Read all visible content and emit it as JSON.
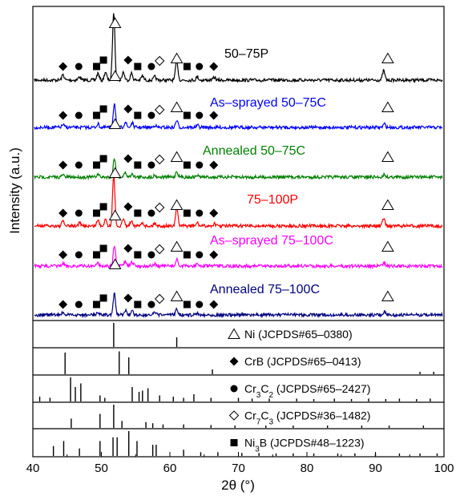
{
  "chart_data": {
    "type": "line",
    "xlabel": "2θ (°)",
    "ylabel": "Intensity (a.u.)",
    "xlim": [
      40,
      100
    ],
    "x_ticks": [
      40,
      50,
      60,
      70,
      80,
      90,
      100
    ],
    "series": [
      {
        "name": "50–75P",
        "color": "#000000",
        "peaks": [
          [
            44.4,
            0.08
          ],
          [
            46.8,
            0.05
          ],
          [
            49.5,
            0.1
          ],
          [
            50.6,
            0.12
          ],
          [
            51.8,
            1.0
          ],
          [
            53.2,
            0.12
          ],
          [
            54.4,
            0.1
          ],
          [
            56.0,
            0.06
          ],
          [
            57.8,
            0.05
          ],
          [
            61.0,
            0.3
          ],
          [
            64.0,
            0.05
          ],
          [
            66.5,
            0.04
          ],
          [
            91.2,
            0.14
          ]
        ]
      },
      {
        "name": "As–sprayed 50–75C",
        "color": "#0000ff",
        "peaks": [
          [
            44.4,
            0.06
          ],
          [
            49.5,
            0.08
          ],
          [
            51.9,
            0.55
          ],
          [
            53.5,
            0.12
          ],
          [
            54.5,
            0.1
          ],
          [
            57.8,
            0.05
          ],
          [
            61.0,
            0.16
          ],
          [
            64.0,
            0.05
          ],
          [
            91.3,
            0.08
          ]
        ]
      },
      {
        "name": "Annealed 50–75C",
        "color": "#008000",
        "peaks": [
          [
            44.4,
            0.06
          ],
          [
            49.5,
            0.08
          ],
          [
            51.9,
            0.5
          ],
          [
            53.5,
            0.12
          ],
          [
            54.5,
            0.1
          ],
          [
            57.8,
            0.05
          ],
          [
            61.0,
            0.15
          ],
          [
            64.0,
            0.05
          ],
          [
            91.3,
            0.07
          ]
        ]
      },
      {
        "name": "75–100P",
        "color": "#ff0000",
        "peaks": [
          [
            44.4,
            0.08
          ],
          [
            46.8,
            0.05
          ],
          [
            49.5,
            0.1
          ],
          [
            50.6,
            0.12
          ],
          [
            51.8,
            0.85
          ],
          [
            53.2,
            0.12
          ],
          [
            54.4,
            0.1
          ],
          [
            56.0,
            0.06
          ],
          [
            57.8,
            0.05
          ],
          [
            61.0,
            0.32
          ],
          [
            64.0,
            0.05
          ],
          [
            66.5,
            0.04
          ],
          [
            91.2,
            0.13
          ]
        ]
      },
      {
        "name": "As–sprayed 75–100C",
        "color": "#ff00ff",
        "peaks": [
          [
            44.4,
            0.06
          ],
          [
            49.5,
            0.08
          ],
          [
            51.9,
            0.5
          ],
          [
            53.5,
            0.12
          ],
          [
            54.5,
            0.1
          ],
          [
            57.8,
            0.05
          ],
          [
            61.0,
            0.16
          ],
          [
            64.0,
            0.05
          ],
          [
            91.3,
            0.08
          ]
        ]
      },
      {
        "name": "Annealed 75–100C",
        "color": "#000080",
        "peaks": [
          [
            44.4,
            0.06
          ],
          [
            49.5,
            0.08
          ],
          [
            51.9,
            0.52
          ],
          [
            53.5,
            0.12
          ],
          [
            54.5,
            0.1
          ],
          [
            57.8,
            0.05
          ],
          [
            61.0,
            0.16
          ],
          [
            64.0,
            0.05
          ],
          [
            91.3,
            0.08
          ]
        ]
      }
    ],
    "reference_panels": [
      {
        "symbol": "open-triangle",
        "formula": [
          "Ni (JCPDS#65–0380)"
        ],
        "lines": [
          [
            51.8,
            1.0
          ],
          [
            61.0,
            0.4
          ]
        ]
      },
      {
        "symbol": "filled-diamond",
        "formula": [
          "CrB (JCPDS#65–0413)"
        ],
        "lines": [
          [
            44.7,
            0.9
          ],
          [
            52.6,
            0.95
          ],
          [
            54.0,
            0.7
          ],
          [
            66.2,
            0.2
          ],
          [
            96.5,
            0.1
          ],
          [
            98.5,
            0.1
          ]
        ]
      },
      {
        "symbol": "filled-circle",
        "formula": [
          "Cr",
          "3",
          "C",
          "2",
          " (JCPDS#65–2427)"
        ],
        "lines": [
          [
            41.0,
            0.2
          ],
          [
            42.5,
            0.15
          ],
          [
            45.5,
            1.0
          ],
          [
            46.2,
            0.6
          ],
          [
            47.0,
            0.75
          ],
          [
            49.8,
            0.25
          ],
          [
            50.5,
            0.15
          ],
          [
            54.5,
            0.6
          ],
          [
            55.5,
            0.4
          ],
          [
            56.0,
            0.45
          ],
          [
            56.8,
            0.55
          ],
          [
            58.5,
            0.25
          ],
          [
            60.5,
            0.2
          ],
          [
            62.0,
            0.15
          ],
          [
            63.5,
            0.3
          ],
          [
            66.0,
            0.15
          ],
          [
            70.0,
            0.15
          ],
          [
            72.0,
            0.12
          ],
          [
            74.5,
            0.12
          ],
          [
            78.5,
            0.12
          ],
          [
            81.0,
            0.1
          ],
          [
            84.0,
            0.12
          ],
          [
            86.5,
            0.1
          ],
          [
            89.0,
            0.12
          ],
          [
            91.5,
            0.1
          ],
          [
            93.5,
            0.12
          ],
          [
            96.0,
            0.1
          ],
          [
            98.0,
            0.12
          ]
        ]
      },
      {
        "symbol": "open-diamond",
        "formula": [
          "Cr",
          "7",
          "C",
          "3",
          " (JCPDS#36–1482)"
        ],
        "lines": [
          [
            45.6,
            0.4
          ],
          [
            49.8,
            0.6
          ],
          [
            51.8,
            1.0
          ],
          [
            53.0,
            0.3
          ],
          [
            56.5,
            0.25
          ],
          [
            57.5,
            0.2
          ],
          [
            59.0,
            0.15
          ],
          [
            62.0,
            0.15
          ],
          [
            66.0,
            0.12
          ],
          [
            69.5,
            0.1
          ],
          [
            74.0,
            0.1
          ],
          [
            78.0,
            0.1
          ],
          [
            83.0,
            0.1
          ],
          [
            88.0,
            0.1
          ],
          [
            92.0,
            0.1
          ],
          [
            97.0,
            0.1
          ]
        ]
      },
      {
        "symbol": "filled-square",
        "formula": [
          "Ni",
          "3",
          "B (JCPDS#48–1223)"
        ],
        "lines": [
          [
            43.0,
            0.4
          ],
          [
            44.5,
            0.6
          ],
          [
            46.8,
            0.3
          ],
          [
            49.8,
            0.6
          ],
          [
            51.7,
            0.75
          ],
          [
            52.3,
            0.75
          ],
          [
            54.0,
            1.0
          ],
          [
            55.2,
            0.6
          ],
          [
            57.5,
            0.45
          ],
          [
            58.0,
            0.45
          ],
          [
            62.0,
            0.25
          ],
          [
            64.5,
            0.15
          ],
          [
            67.0,
            0.15
          ],
          [
            70.5,
            0.12
          ],
          [
            73.0,
            0.12
          ],
          [
            75.5,
            0.1
          ],
          [
            78.0,
            0.1
          ],
          [
            81.0,
            0.1
          ],
          [
            84.5,
            0.1
          ],
          [
            87.0,
            0.1
          ],
          [
            90.0,
            0.1
          ],
          [
            93.5,
            0.1
          ],
          [
            96.5,
            0.1
          ],
          [
            99.0,
            0.1
          ]
        ]
      }
    ],
    "markers": [
      {
        "symbol": "filled-diamond",
        "x": 44.4
      },
      {
        "symbol": "filled-circle",
        "x": 46.7
      },
      {
        "symbol": "filled-square",
        "x": 49.3
      },
      {
        "symbol": "filled-square",
        "x": 50.3
      },
      {
        "symbol": "open-triangle",
        "x": 52.0,
        "level": "high"
      },
      {
        "symbol": "filled-diamond",
        "x": 53.9
      },
      {
        "symbol": "filled-square",
        "x": 55.3
      },
      {
        "symbol": "filled-circle",
        "x": 57.3
      },
      {
        "symbol": "open-diamond",
        "x": 58.5
      },
      {
        "symbol": "open-triangle",
        "x": 61.0
      },
      {
        "symbol": "filled-square",
        "x": 62.5
      },
      {
        "symbol": "filled-circle",
        "x": 64.3
      },
      {
        "symbol": "filled-diamond",
        "x": 66.4
      },
      {
        "symbol": "open-triangle",
        "x": 91.8
      }
    ]
  }
}
